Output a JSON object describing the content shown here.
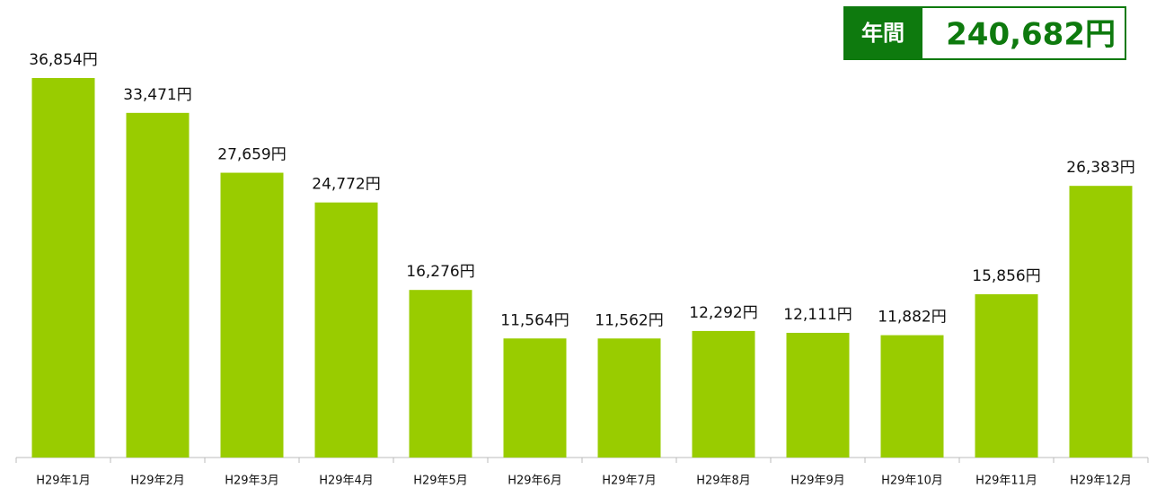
{
  "chart_data": {
    "type": "bar",
    "total_label": "年間",
    "total": "240,682円",
    "categories": [
      "H29年1月",
      "H29年2月",
      "H29年3月",
      "H29年4月",
      "H29年5月",
      "H29年6月",
      "H29年7月",
      "H29年8月",
      "H29年9月",
      "H29年10月",
      "H29年11月",
      "H29年12月"
    ],
    "values": [
      36854,
      33471,
      27659,
      24772,
      16276,
      11564,
      11562,
      12292,
      12111,
      11882,
      15856,
      26383
    ],
    "value_labels": [
      "36,854円",
      "33,471円",
      "27,659円",
      "24,772円",
      "16,276円",
      "11,564円",
      "11,562円",
      "12,292円",
      "12,111円",
      "11,882円",
      "15,856円",
      "26,383円"
    ],
    "color": "#99cc00"
  }
}
